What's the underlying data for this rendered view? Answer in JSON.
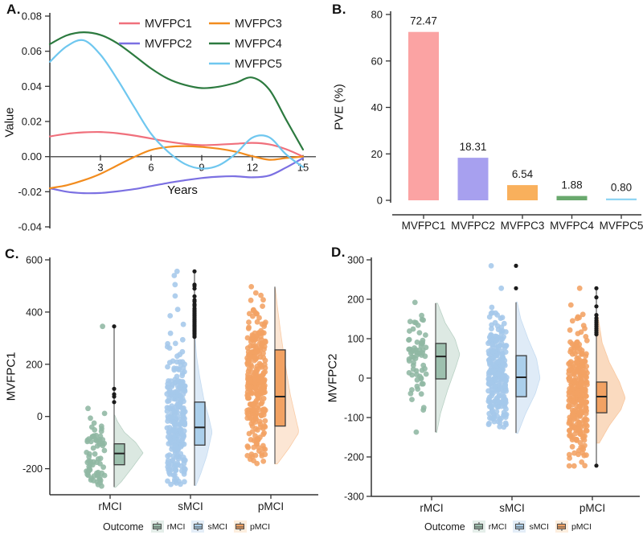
{
  "figure": {
    "background": "#ffffff",
    "axis_color": "#333333",
    "zero_line_color": "#595959",
    "outlier_color": "#1b1b1b"
  },
  "chart_data": [
    {
      "panel_label": "A.",
      "type": "line",
      "xlabel": "Years",
      "ylabel": "Value",
      "xlim": [
        0,
        15
      ],
      "ylim": [
        -0.04,
        0.08
      ],
      "xticks": [
        3,
        6,
        9,
        12,
        15
      ],
      "yticks": [
        0.08,
        0.06,
        0.04,
        0.02,
        0.0,
        -0.02,
        -0.04
      ],
      "ytick_labels": [
        "0.08",
        "0.06",
        "0.04",
        "0.02",
        "0.00",
        "-0.02",
        "-0.04"
      ],
      "legend_position": "top-center",
      "x": [
        0,
        1,
        2,
        3,
        4,
        5,
        6,
        7,
        8,
        9,
        10,
        11,
        12,
        13,
        14,
        15
      ],
      "series": [
        {
          "name": "MVFPC1",
          "color": "#f0707c",
          "values": [
            0.0115,
            0.013,
            0.0138,
            0.014,
            0.0133,
            0.012,
            0.0103,
            0.0085,
            0.0072,
            0.0065,
            0.0068,
            0.0073,
            0.0078,
            0.007,
            0.0042,
            0.0
          ]
        },
        {
          "name": "MVFPC2",
          "color": "#7b70e2",
          "values": [
            -0.018,
            -0.02,
            -0.0208,
            -0.0207,
            -0.0198,
            -0.0185,
            -0.0168,
            -0.015,
            -0.0135,
            -0.0122,
            -0.0114,
            -0.0112,
            -0.0118,
            -0.0108,
            -0.0062,
            -0.0008
          ]
        },
        {
          "name": "MVFPC3",
          "color": "#f28c1e",
          "values": [
            -0.018,
            -0.0163,
            -0.0135,
            -0.0098,
            -0.005,
            -0.0002,
            0.0038,
            0.0055,
            0.006,
            0.0055,
            0.0045,
            0.0028,
            0.0002,
            -0.0018,
            -0.0008,
            0.0
          ]
        },
        {
          "name": "MVFPC4",
          "color": "#2c7a3f",
          "values": [
            0.064,
            0.069,
            0.0708,
            0.0693,
            0.0645,
            0.0575,
            0.0502,
            0.0443,
            0.0408,
            0.039,
            0.0398,
            0.042,
            0.045,
            0.0382,
            0.021,
            0.004
          ]
        },
        {
          "name": "MVFPC5",
          "color": "#6fc7ef",
          "values": [
            0.054,
            0.0628,
            0.0662,
            0.058,
            0.044,
            0.0282,
            0.013,
            0.0028,
            -0.0042,
            -0.0068,
            -0.005,
            0.0015,
            0.0108,
            0.011,
            0.0012,
            -0.006
          ]
        }
      ]
    },
    {
      "panel_label": "B.",
      "type": "bar",
      "ylabel": "PVE (%)",
      "ylim": [
        0,
        80
      ],
      "yticks": [
        0,
        20,
        40,
        60,
        80
      ],
      "categories": [
        "MVFPC1",
        "MVFPC2",
        "MVFPC3",
        "MVFPC4",
        "MVFPC5"
      ],
      "values": [
        72.47,
        18.31,
        6.54,
        1.88,
        0.8
      ],
      "bar_labels": [
        "72.47",
        "18.31",
        "6.54",
        "1.88",
        "0.80"
      ],
      "colors": [
        "#fba3a3",
        "#a7a0ef",
        "#f9b05c",
        "#69a96d",
        "#90d5f3"
      ]
    },
    {
      "panel_label": "C.",
      "type": "raincloud",
      "ylabel": "MVFPC1",
      "ylim": [
        -300,
        600
      ],
      "yticks": [
        600,
        400,
        200,
        0,
        -200
      ],
      "categories": [
        "rMCI",
        "sMCI",
        "pMCI"
      ],
      "legend": {
        "title": "Outcome",
        "items": [
          {
            "label": "rMCI"
          },
          {
            "label": "sMCI"
          },
          {
            "label": "pMCI"
          }
        ]
      },
      "groups": [
        {
          "name": "rMCI",
          "seed": 11,
          "colors": {
            "dot": "#8fb7a3",
            "box": "#9dc0ae",
            "violin": "#8fb7a3",
            "tint": "#e4eee9"
          },
          "box": {
            "q1": -185,
            "median": -142,
            "q3": -105
          },
          "whisker": {
            "top": 345,
            "bottom": -270
          },
          "points": {
            "n": 70,
            "mean": -150,
            "sd": 80,
            "min": -272,
            "max": 110,
            "extra": [
              345
            ]
          },
          "violin": {
            "alpha": 0.32,
            "max_width": 36,
            "profile": [
              [
                -272,
                0.05
              ],
              [
                -250,
                0.25
              ],
              [
                -200,
                0.6
              ],
              [
                -140,
                1.0
              ],
              [
                -100,
                0.75
              ],
              [
                -60,
                0.35
              ],
              [
                -20,
                0.12
              ],
              [
                5,
                0.02
              ]
            ]
          },
          "outliers": [
            345,
            106,
            85,
            76,
            55
          ]
        },
        {
          "name": "sMCI",
          "seed": 22,
          "colors": {
            "dot": "#a5c8ea",
            "box": "#abcfeb",
            "violin": "#a5c8ea",
            "tint": "#e3edf7"
          },
          "box": {
            "q1": -110,
            "median": -42,
            "q3": 55
          },
          "whisker": {
            "top": 558,
            "bottom": -265
          },
          "points": {
            "n": 268,
            "mean": -40,
            "sd": 160,
            "min": -262,
            "max": 558,
            "extra": [
              556,
              540,
              505
            ]
          },
          "violin": {
            "alpha": 0.38,
            "max_width": 22,
            "profile": [
              [
                -265,
                0.08
              ],
              [
                -220,
                0.35
              ],
              [
                -150,
                0.7
              ],
              [
                -60,
                1.0
              ],
              [
                0,
                0.8
              ],
              [
                60,
                0.55
              ],
              [
                150,
                0.3
              ],
              [
                230,
                0.12
              ],
              [
                310,
                0.03
              ]
            ]
          },
          "outliers": [
            556,
            505,
            500,
            490,
            460,
            446,
            440,
            430,
            424,
            414,
            408,
            402,
            396,
            390,
            385,
            380,
            375,
            370,
            365,
            360,
            355,
            350,
            345,
            340,
            335,
            330,
            325,
            319,
            312,
            305
          ]
        },
        {
          "name": "pMCI",
          "seed": 33,
          "colors": {
            "dot": "#f2a263",
            "box": "#f2a263",
            "violin": "#f5ad71",
            "tint": "#fdeede"
          },
          "box": {
            "q1": -37,
            "median": 76,
            "q3": 255
          },
          "whisker": {
            "top": 497,
            "bottom": -182
          },
          "points": {
            "n": 288,
            "mean": 120,
            "sd": 175,
            "min": -182,
            "max": 497,
            "extra": [
              497,
              -180
            ]
          },
          "violin": {
            "alpha": 0.3,
            "max_width": 30,
            "profile": [
              [
                -182,
                0.1
              ],
              [
                -120,
                0.6
              ],
              [
                -60,
                1.0
              ],
              [
                0,
                0.85
              ],
              [
                80,
                0.65
              ],
              [
                160,
                0.5
              ],
              [
                250,
                0.35
              ],
              [
                350,
                0.2
              ],
              [
                440,
                0.08
              ],
              [
                490,
                0.02
              ]
            ]
          },
          "outliers": []
        }
      ]
    },
    {
      "panel_label": "D.",
      "type": "raincloud",
      "ylabel": "MVFPC2",
      "ylim": [
        -300,
        300
      ],
      "yticks": [
        300,
        200,
        100,
        0,
        -100,
        -200,
        -300
      ],
      "categories": [
        "rMCI",
        "sMCI",
        "pMCI"
      ],
      "legend": {
        "title": "Outcome",
        "items": [
          {
            "label": "rMCI"
          },
          {
            "label": "sMCI"
          },
          {
            "label": "pMCI"
          }
        ]
      },
      "groups": [
        {
          "name": "rMCI",
          "seed": 44,
          "colors": {
            "dot": "#8fb7a3",
            "box": "#9dc0ae",
            "violin": "#8fb7a3",
            "tint": "#e4eee9"
          },
          "box": {
            "q1": -2,
            "median": 55,
            "q3": 88
          },
          "whisker": {
            "top": 190,
            "bottom": -137
          },
          "points": {
            "n": 66,
            "mean": 50,
            "sd": 68,
            "min": -138,
            "max": 192,
            "extra": [
              192,
              -137
            ]
          },
          "violin": {
            "alpha": 0.3,
            "max_width": 30,
            "profile": [
              [
                -138,
                0.05
              ],
              [
                -90,
                0.2
              ],
              [
                -30,
                0.5
              ],
              [
                30,
                0.85
              ],
              [
                60,
                1.0
              ],
              [
                100,
                0.8
              ],
              [
                140,
                0.4
              ],
              [
                190,
                0.08
              ]
            ]
          },
          "outliers": []
        },
        {
          "name": "sMCI",
          "seed": 55,
          "colors": {
            "dot": "#a5c8ea",
            "box": "#abcfeb",
            "violin": "#a5c8ea",
            "tint": "#e3edf7"
          },
          "box": {
            "q1": -47,
            "median": 2,
            "q3": 57
          },
          "whisker": {
            "top": 192,
            "bottom": -139
          },
          "points": {
            "n": 278,
            "mean": 5,
            "sd": 72,
            "min": -141,
            "max": 193,
            "extra": [
              285,
              228
            ]
          },
          "violin": {
            "alpha": 0.36,
            "max_width": 30,
            "profile": [
              [
                -140,
                0.08
              ],
              [
                -90,
                0.4
              ],
              [
                -40,
                0.8
              ],
              [
                0,
                1.0
              ],
              [
                50,
                0.85
              ],
              [
                100,
                0.5
              ],
              [
                150,
                0.2
              ],
              [
                193,
                0.05
              ]
            ]
          },
          "outliers": [
            285,
            228
          ]
        },
        {
          "name": "pMCI",
          "seed": 66,
          "colors": {
            "dot": "#f2a263",
            "box": "#f2a263",
            "violin": "#f5ad71",
            "tint": "#fdeede"
          },
          "box": {
            "q1": -88,
            "median": -47,
            "q3": -10
          },
          "whisker": {
            "top": 231,
            "bottom": -222
          },
          "points": {
            "n": 288,
            "mean": -40,
            "sd": 78,
            "min": -223,
            "max": 228,
            "extra": [
              228,
              -222
            ]
          },
          "violin": {
            "alpha": 0.45,
            "max_width": 36,
            "profile": [
              [
                -165,
                0.1
              ],
              [
                -120,
                0.45
              ],
              [
                -80,
                0.85
              ],
              [
                -50,
                1.0
              ],
              [
                -10,
                0.8
              ],
              [
                40,
                0.45
              ],
              [
                90,
                0.2
              ],
              [
                160,
                0.05
              ]
            ]
          },
          "outliers": [
            228,
            205,
            182,
            160,
            152,
            146,
            141,
            136,
            131,
            126,
            121,
            116,
            111,
            -222
          ]
        }
      ]
    }
  ]
}
